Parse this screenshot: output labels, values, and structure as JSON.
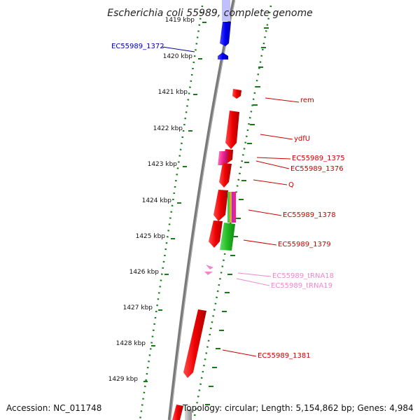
{
  "title": "Escherichia coli 55989, complete genome",
  "footer": {
    "accession": "Accession: NC_011748",
    "topology": "Topology: circular; Length: 5,154,862 bp; Genes: 4,984"
  },
  "colors": {
    "backbone": "#808080",
    "tick": "#1a7a1a",
    "blue_gene": "#0000ee",
    "red_gene": "#ee0000",
    "pink_gene": "#ee2288",
    "trna": "#ee88cc",
    "green_gene": "#22bb22",
    "label_blue": "#0000aa",
    "label_red": "#cc0000",
    "label_pink": "#ee88cc"
  },
  "ticks": [
    {
      "kbp": 1419,
      "label": "1419 kbp"
    },
    {
      "kbp": 1420,
      "label": "1420 kbp"
    },
    {
      "kbp": 1421,
      "label": "1421 kbp"
    },
    {
      "kbp": 1422,
      "label": "1422 kbp"
    },
    {
      "kbp": 1423,
      "label": "1423 kbp"
    },
    {
      "kbp": 1424,
      "label": "1424 kbp"
    },
    {
      "kbp": 1425,
      "label": "1425 kbp"
    },
    {
      "kbp": 1426,
      "label": "1426 kbp"
    },
    {
      "kbp": 1427,
      "label": "1427 kbp"
    },
    {
      "kbp": 1428,
      "label": "1428 kbp"
    },
    {
      "kbp": 1429,
      "label": "1429 kbp"
    }
  ],
  "genes": [
    {
      "label": "EC55989_1372",
      "color": "label_blue"
    },
    {
      "label": "rem",
      "color": "label_red"
    },
    {
      "label": "ydfU",
      "color": "label_red"
    },
    {
      "label": "EC55989_1375",
      "color": "label_red"
    },
    {
      "label": "EC55989_1376",
      "color": "label_red"
    },
    {
      "label": "Q",
      "color": "label_red"
    },
    {
      "label": "EC55989_1378",
      "color": "label_red"
    },
    {
      "label": "EC55989_1379",
      "color": "label_red"
    },
    {
      "label": "EC55989_tRNA18",
      "color": "label_pink"
    },
    {
      "label": "EC55989_tRNA19",
      "color": "label_pink"
    },
    {
      "label": "EC55989_1381",
      "color": "label_red"
    }
  ]
}
